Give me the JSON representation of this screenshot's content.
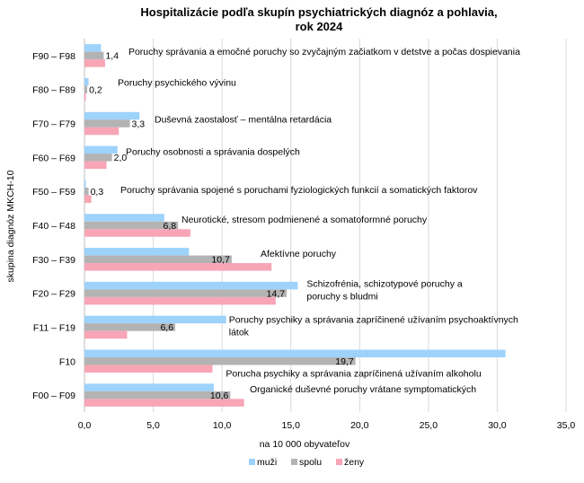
{
  "chart_data": {
    "type": "bar",
    "orientation": "horizontal",
    "title": [
      "Hospitalizácie podľa skupín psychiatrických diagnóz a pohlavia,",
      "rok 2024"
    ],
    "xlabel": "na 10 000 obyvateľov",
    "ylabel": "skupina diagnóz MKCH-10",
    "xlim": [
      0,
      35
    ],
    "xticks": [
      "0,0",
      "5,0",
      "10,0",
      "15,0",
      "20,0",
      "25,0",
      "30,0",
      "35,0"
    ],
    "grid": true,
    "legend_position": "bottom",
    "colors": {
      "muzi": "#9dd2fb",
      "spolu": "#b3b3b3",
      "zeny": "#f8a5b6"
    },
    "categories": [
      "F90 – F98",
      "F80 – F89",
      "F70 – F79",
      "F60 – F69",
      "F50 – F59",
      "F40 – F48",
      "F30 – F39",
      "F20 – F29",
      "F11 – F19",
      "F10",
      "F00 – F09"
    ],
    "descriptions": [
      [
        "Poruchy správania a emočné poruchy so zvyčajným začiatkom v detstve a počas dospievania"
      ],
      [
        "Poruchy psychického vývinu"
      ],
      [
        "Duševná zaostalosť – mentálna retardácia"
      ],
      [
        "Poruchy osobnosti a správania dospelých"
      ],
      [
        "Poruchy správania spojené s poruchami fyziologických funkcií a somatických faktorov"
      ],
      [
        "Neurotické, stresom podmienené a somatoformné poruchy"
      ],
      [
        "Afektívne poruchy"
      ],
      [
        "Schizofrénia, schizotypové poruchy a",
        "poruchy s bludmi"
      ],
      [
        "Poruchy psychiky a správania zapríčinené užívaním psychoaktívnych",
        "látok"
      ],
      [
        "Porucha psychiky a správania zapríčinená užívaním alkoholu"
      ],
      [
        "Organické duševné poruchy vrátane symptomatických"
      ]
    ],
    "series": [
      {
        "name": "muži",
        "values": [
          1.2,
          0.3,
          4.0,
          2.4,
          0.1,
          5.8,
          7.6,
          15.5,
          10.3,
          30.6,
          9.4
        ]
      },
      {
        "name": "spolu",
        "values": [
          1.4,
          0.2,
          3.3,
          2.0,
          0.3,
          6.8,
          10.7,
          14.7,
          6.6,
          19.7,
          10.6
        ]
      },
      {
        "name": "ženy",
        "values": [
          1.5,
          0.1,
          2.5,
          1.6,
          0.5,
          7.7,
          13.6,
          13.9,
          3.1,
          9.3,
          11.6
        ]
      }
    ],
    "data_labels": [
      "1,4",
      "0,2",
      "3,3",
      "2,0",
      "0,3",
      "6,8",
      "10,7",
      "14,7",
      "6,6",
      "19,7",
      "10,6"
    ]
  }
}
